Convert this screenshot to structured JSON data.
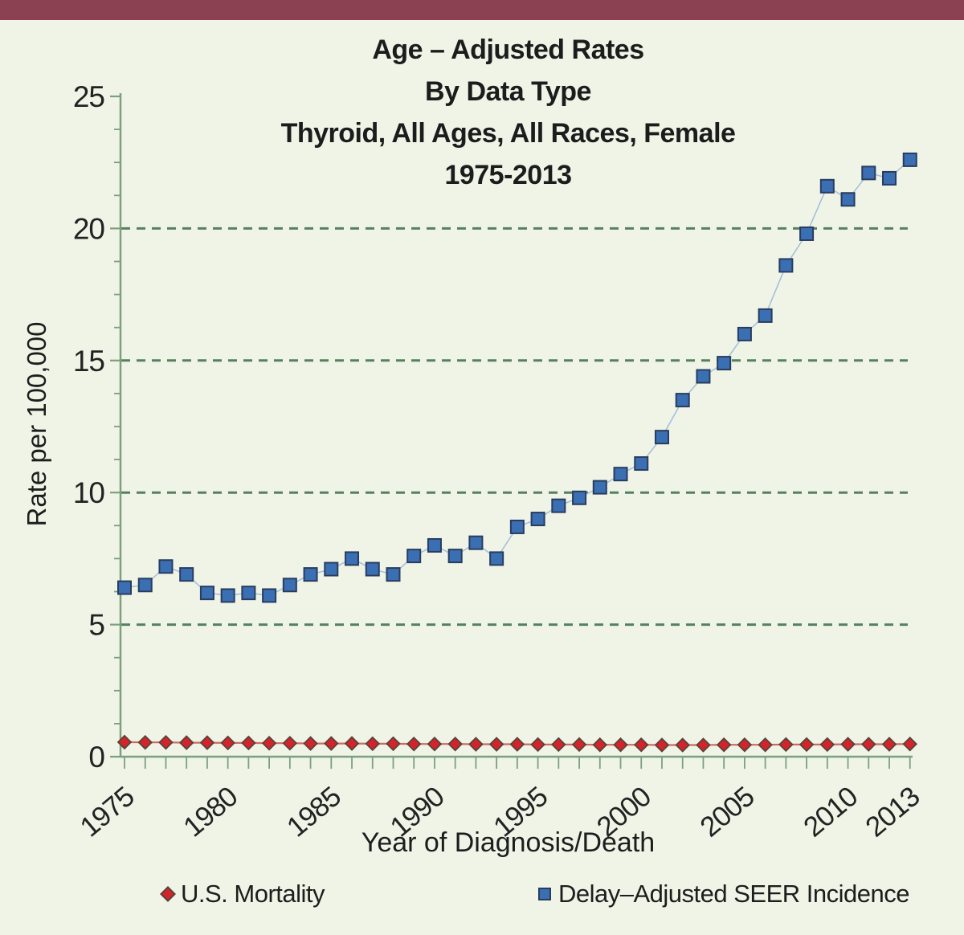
{
  "page": {
    "background_color": "#eff4e7",
    "top_band_color": "#8c4152"
  },
  "chart_data": {
    "type": "line",
    "title_lines": [
      "Age – Adjusted Rates",
      "By Data Type",
      "Thyroid, All Ages, All Races, Female",
      "1975-2013"
    ],
    "xlabel": "Year of Diagnosis/Death",
    "ylabel": "Rate per 100,000",
    "ylim": [
      0,
      25
    ],
    "y_major_ticks": [
      0,
      5,
      10,
      15,
      20,
      25
    ],
    "y_tick_labels": [
      "0",
      "5",
      "10",
      "15",
      "20",
      "25"
    ],
    "y_minor_step": 1.25,
    "gridlines_y": [
      5,
      10,
      15,
      20
    ],
    "grid_style": "dashed-horizontal",
    "legend_position": "bottom",
    "x_tick_years": [
      1975,
      1980,
      1985,
      1990,
      1995,
      2000,
      2005,
      2010,
      2013
    ],
    "x_tick_labels": [
      "1975",
      "1980",
      "1985",
      "1990",
      "1995",
      "2000",
      "2005",
      "2010",
      "2013"
    ],
    "x": [
      1975,
      1976,
      1977,
      1978,
      1979,
      1980,
      1981,
      1982,
      1983,
      1984,
      1985,
      1986,
      1987,
      1988,
      1989,
      1990,
      1991,
      1992,
      1993,
      1994,
      1995,
      1996,
      1997,
      1998,
      1999,
      2000,
      2001,
      2002,
      2003,
      2004,
      2005,
      2006,
      2007,
      2008,
      2009,
      2010,
      2011,
      2012,
      2013
    ],
    "series": [
      {
        "id": "mortality",
        "name": "U.S. Mortality",
        "marker": "diamond",
        "color": "#d4232a",
        "marker_stroke": "#55443a",
        "line_color": "#cf6a62",
        "values": [
          0.55,
          0.54,
          0.54,
          0.53,
          0.53,
          0.52,
          0.52,
          0.51,
          0.51,
          0.5,
          0.5,
          0.5,
          0.49,
          0.49,
          0.48,
          0.48,
          0.48,
          0.47,
          0.47,
          0.47,
          0.46,
          0.46,
          0.46,
          0.45,
          0.45,
          0.45,
          0.44,
          0.44,
          0.44,
          0.45,
          0.45,
          0.45,
          0.46,
          0.46,
          0.46,
          0.47,
          0.47,
          0.47,
          0.48
        ]
      },
      {
        "id": "incidence",
        "name": "Delay–Adjusted SEER Incidence",
        "marker": "square",
        "color": "#3a6fb3",
        "marker_stroke": "#2a3c5e",
        "line_color": "#a7c0d8",
        "values": [
          6.4,
          6.5,
          7.2,
          6.9,
          6.2,
          6.1,
          6.2,
          6.1,
          6.5,
          6.9,
          7.1,
          7.5,
          7.1,
          6.9,
          7.6,
          8.0,
          7.6,
          8.1,
          7.5,
          8.7,
          9.0,
          9.5,
          9.8,
          10.2,
          10.7,
          11.1,
          12.1,
          13.5,
          14.4,
          14.9,
          16.0,
          16.7,
          18.6,
          19.8,
          21.6,
          21.1,
          22.1,
          21.9,
          22.6
        ]
      }
    ],
    "colors": {
      "axis": "#7d9f80",
      "grid": "#55815f",
      "text": "#222222"
    }
  }
}
